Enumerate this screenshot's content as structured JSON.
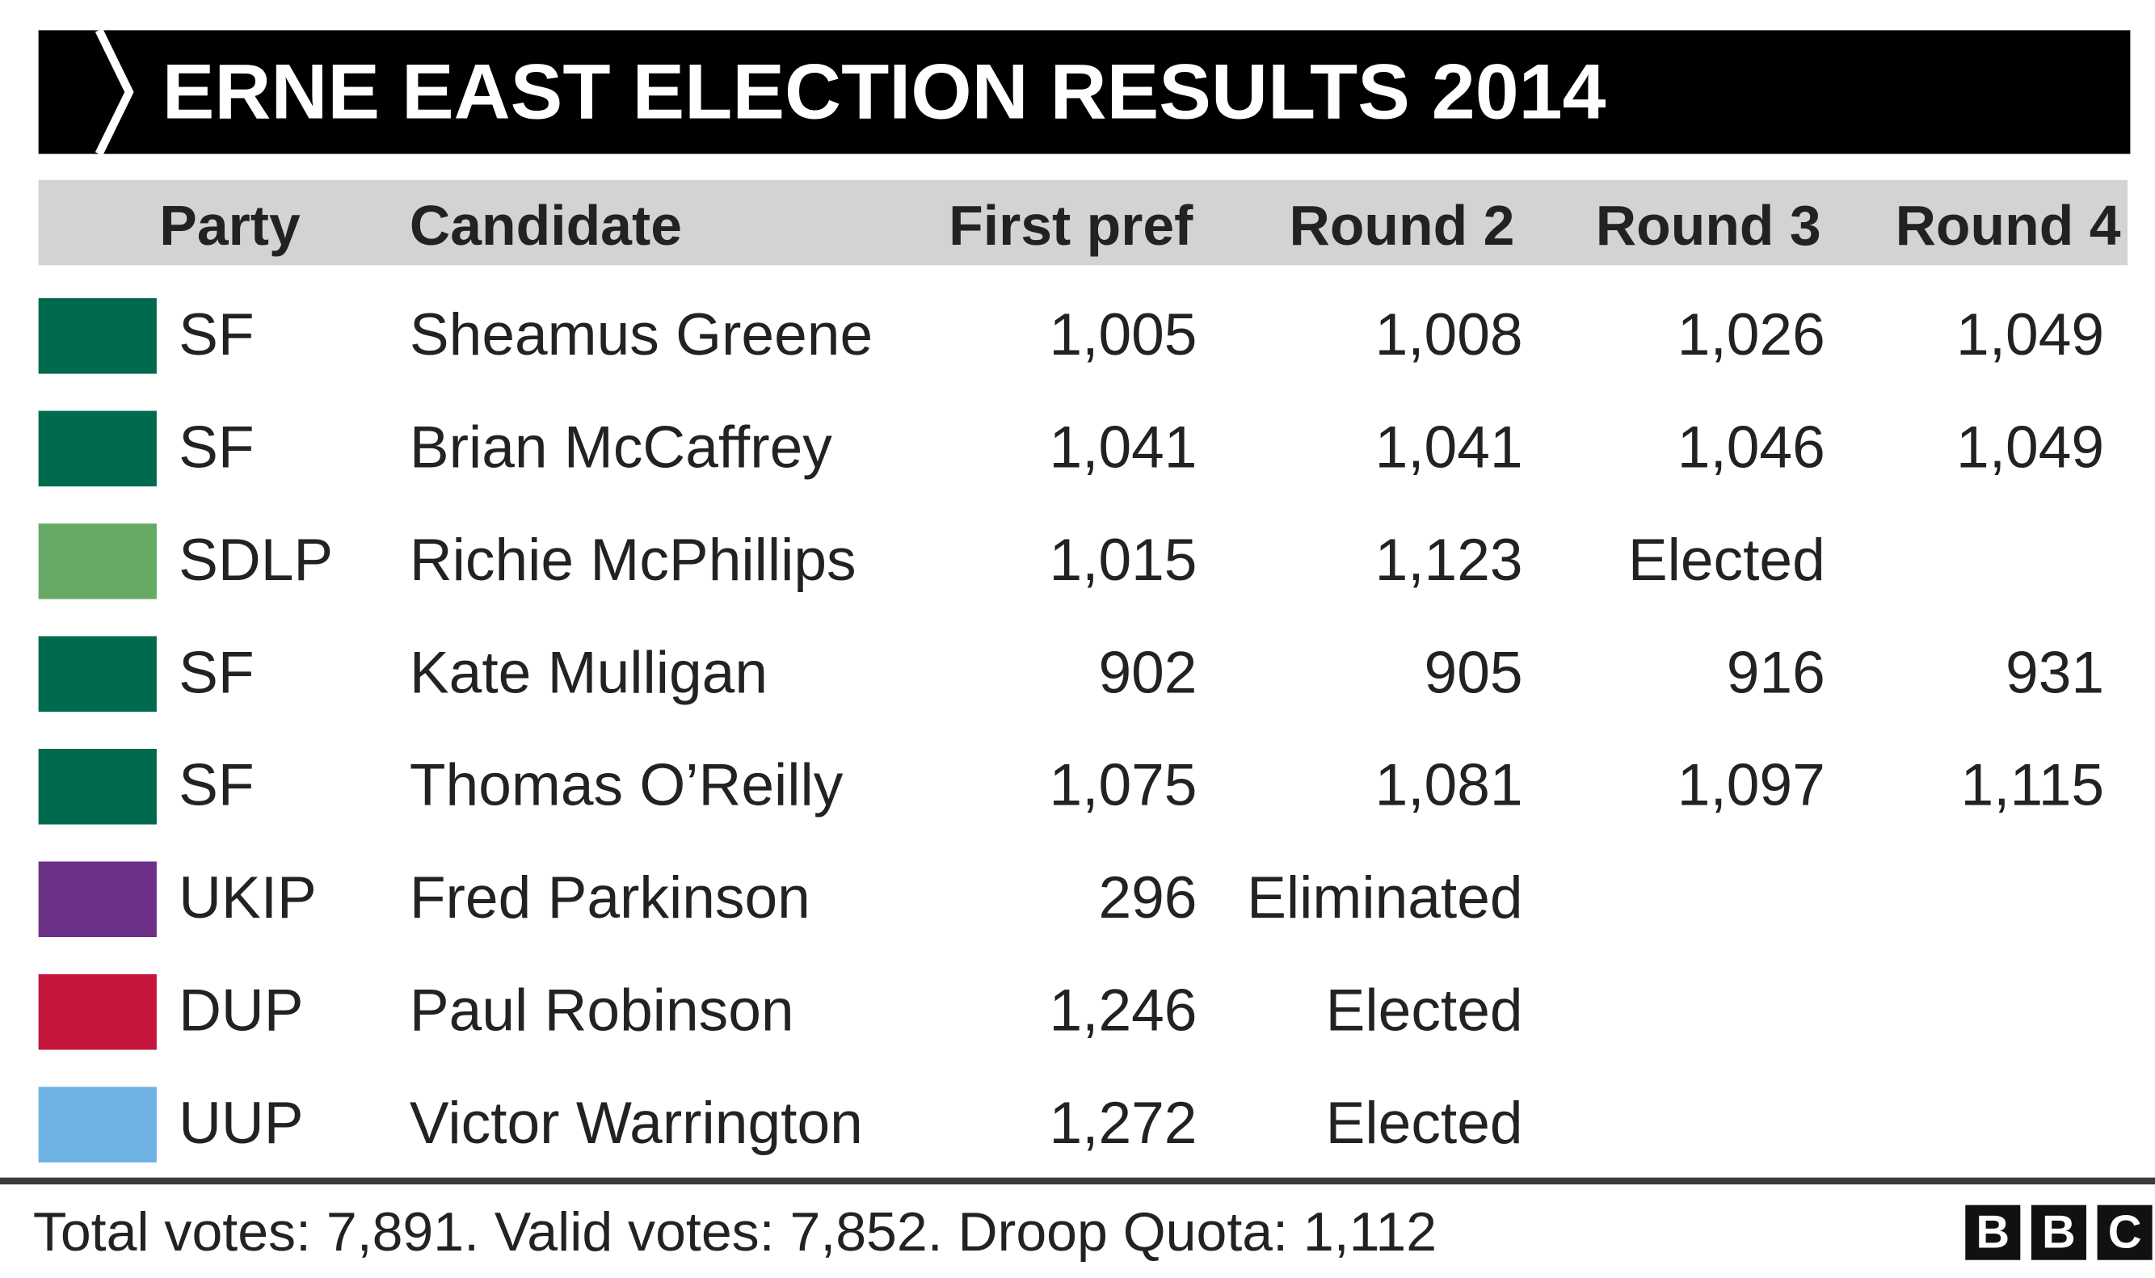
{
  "header": {
    "title": "ERNE EAST ELECTION RESULTS 2014"
  },
  "table": {
    "columns": [
      "Party",
      "Candidate",
      "First pref",
      "Round 2",
      "Round 3",
      "Round 4"
    ],
    "rows": [
      {
        "color": "#006a4e",
        "party": "SF",
        "candidate": "Sheamus Greene",
        "values": [
          "1,005",
          "1,008",
          "1,026",
          "1,049"
        ]
      },
      {
        "color": "#006a4e",
        "party": "SF",
        "candidate": "Brian McCaffrey",
        "values": [
          "1,041",
          "1,041",
          "1,046",
          "1,049"
        ]
      },
      {
        "color": "#66aa66",
        "party": "SDLP",
        "candidate": "Richie McPhillips",
        "values": [
          "1,015",
          "1,123",
          "Elected"
        ]
      },
      {
        "color": "#006a4e",
        "party": "SF",
        "candidate": "Kate Mulligan",
        "values": [
          "902",
          "905",
          "916",
          "931"
        ]
      },
      {
        "color": "#006a4e",
        "party": "SF",
        "candidate": "Thomas O’Reilly",
        "values": [
          "1,075",
          "1,081",
          "1,097",
          "1,115"
        ]
      },
      {
        "color": "#6d3088",
        "party": "UKIP",
        "candidate": "Fred Parkinson",
        "values": [
          "296",
          "Eliminated"
        ]
      },
      {
        "color": "#c4163c",
        "party": "DUP",
        "candidate": "Paul Robinson",
        "values": [
          "1,246",
          "Elected"
        ]
      },
      {
        "color": "#6fb2e4",
        "party": "UUP",
        "candidate": "Victor Warrington",
        "values": [
          "1,272",
          "Elected"
        ]
      }
    ]
  },
  "footer": {
    "text": "Total votes: 7,891. Valid votes: 7,852. Droop Quota: 1,112",
    "logo": [
      "B",
      "B",
      "C"
    ]
  }
}
